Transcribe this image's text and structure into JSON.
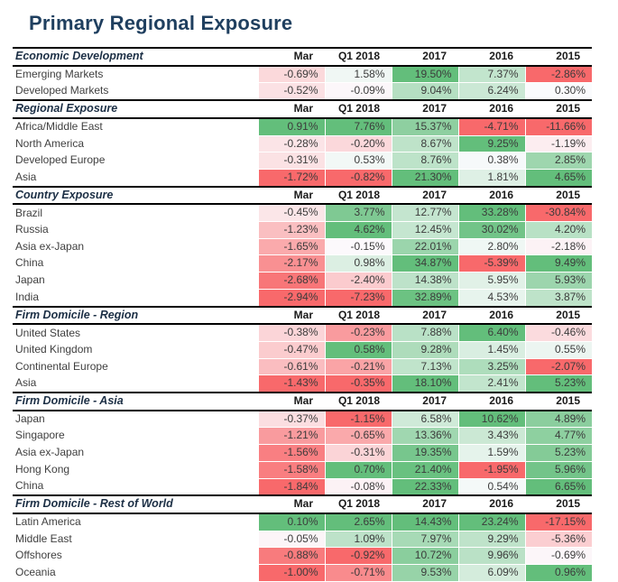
{
  "title": "Primary Regional Exposure",
  "chart_data": {
    "type": "heatmap",
    "title": "Primary Regional Exposure",
    "value_unit": "%",
    "columns": [
      "Mar",
      "Q1 2018",
      "2017",
      "2016",
      "2015"
    ],
    "color_scale": {
      "min_color": "#F8696B",
      "mid_color": "#FCFCFF",
      "max_color": "#63BE7B",
      "midpoint": 0
    },
    "sections": [
      {
        "name": "Economic Development",
        "scale": "all",
        "rows": [
          {
            "label": "Emerging Markets",
            "values": [
              -0.69,
              1.58,
              19.5,
              7.37,
              -2.86
            ]
          },
          {
            "label": "Developed Markets",
            "values": [
              -0.52,
              -0.09,
              9.04,
              6.24,
              0.3
            ]
          }
        ]
      },
      {
        "name": "Regional Exposure",
        "scale": "column",
        "rows": [
          {
            "label": "Africa/Middle East",
            "values": [
              0.91,
              7.76,
              15.37,
              -4.71,
              -11.66
            ]
          },
          {
            "label": "North America",
            "values": [
              -0.28,
              -0.2,
              8.67,
              9.25,
              -1.19
            ]
          },
          {
            "label": "Developed Europe",
            "values": [
              -0.31,
              0.53,
              8.76,
              0.38,
              2.85
            ]
          },
          {
            "label": "Asia",
            "values": [
              -1.72,
              -0.82,
              21.3,
              1.81,
              4.65
            ]
          }
        ]
      },
      {
        "name": "Country Exposure",
        "scale": "column",
        "rows": [
          {
            "label": "Brazil",
            "values": [
              -0.45,
              3.77,
              12.77,
              33.28,
              -30.84
            ]
          },
          {
            "label": "Russia",
            "values": [
              -1.23,
              4.62,
              12.45,
              30.02,
              4.2
            ]
          },
          {
            "label": "Asia ex-Japan",
            "values": [
              -1.65,
              -0.15,
              22.01,
              2.8,
              -2.18
            ]
          },
          {
            "label": "China",
            "values": [
              -2.17,
              0.98,
              34.87,
              -5.39,
              9.49
            ]
          },
          {
            "label": "Japan",
            "values": [
              -2.68,
              -2.4,
              14.38,
              5.95,
              5.93
            ]
          },
          {
            "label": "India",
            "values": [
              -2.94,
              -7.23,
              32.89,
              4.53,
              3.87
            ]
          }
        ]
      },
      {
        "name": "Firm Domicile - Region",
        "scale": "column",
        "rows": [
          {
            "label": "United States",
            "values": [
              -0.38,
              -0.23,
              7.88,
              6.4,
              -0.46
            ]
          },
          {
            "label": "United Kingdom",
            "values": [
              -0.47,
              0.58,
              9.28,
              1.45,
              0.55
            ]
          },
          {
            "label": "Continental Europe",
            "values": [
              -0.61,
              -0.21,
              7.13,
              3.25,
              -2.07
            ]
          },
          {
            "label": "Asia",
            "values": [
              -1.43,
              -0.35,
              18.1,
              2.41,
              5.23
            ]
          }
        ]
      },
      {
        "name": "Firm Domicile - Asia",
        "scale": "column",
        "rows": [
          {
            "label": "Japan",
            "values": [
              -0.37,
              -1.15,
              6.58,
              10.62,
              4.89
            ]
          },
          {
            "label": "Singapore",
            "values": [
              -1.21,
              -0.65,
              13.36,
              3.43,
              4.77
            ]
          },
          {
            "label": "Asia ex-Japan",
            "values": [
              -1.56,
              -0.31,
              19.35,
              1.59,
              5.23
            ]
          },
          {
            "label": "Hong Kong",
            "values": [
              -1.58,
              0.7,
              21.4,
              -1.95,
              5.96
            ]
          },
          {
            "label": "China",
            "values": [
              -1.84,
              -0.08,
              22.33,
              0.54,
              6.65
            ]
          }
        ]
      },
      {
        "name": "Firm Domicile - Rest of World",
        "scale": "column",
        "rows": [
          {
            "label": "Latin America",
            "values": [
              0.1,
              2.65,
              14.43,
              23.24,
              -17.15
            ]
          },
          {
            "label": "Middle East",
            "values": [
              -0.05,
              1.09,
              7.97,
              9.29,
              -5.36
            ]
          },
          {
            "label": "Offshores",
            "values": [
              -0.88,
              -0.92,
              10.72,
              9.96,
              -0.69
            ]
          },
          {
            "label": "Oceania",
            "values": [
              -1.0,
              -0.71,
              9.53,
              6.09,
              0.96
            ]
          }
        ]
      }
    ]
  }
}
